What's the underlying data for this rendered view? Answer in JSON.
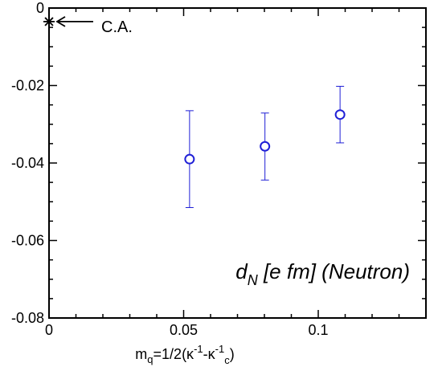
{
  "chart_data": {
    "type": "scatter",
    "title": "",
    "inner_label": {
      "main": "d",
      "sub": "N",
      "rest": " [e fm] (Neutron)"
    },
    "xlabel": {
      "prefix": "m",
      "sub_q": "q",
      "eq": "=1/2(κ",
      "sup1": "-1",
      "mid": "-κ",
      "sup2": "-1",
      "sub_c": "c",
      "close": ")"
    },
    "ylabel": "",
    "xlim": [
      0,
      0.14
    ],
    "ylim": [
      -0.08,
      0
    ],
    "x_ticks": [
      {
        "value": 0,
        "label": "0"
      },
      {
        "value": 0.05,
        "label": "0.05"
      },
      {
        "value": 0.1,
        "label": "0.1"
      }
    ],
    "y_ticks": [
      {
        "value": 0,
        "label": "0"
      },
      {
        "value": -0.02,
        "label": "-0.02"
      },
      {
        "value": -0.04,
        "label": "-0.04"
      },
      {
        "value": -0.06,
        "label": "-0.06"
      },
      {
        "value": -0.08,
        "label": "-0.08"
      }
    ],
    "x_minor_step": 0.01,
    "y_minor_step": 0.005,
    "series": [
      {
        "color": "#1f1fd6",
        "marker": "open-circle",
        "points": [
          {
            "x": 0.0522,
            "y": -0.039,
            "err_low": -0.0515,
            "err_high": -0.0265
          },
          {
            "x": 0.0802,
            "y": -0.0357,
            "err_low": -0.0444,
            "err_high": -0.0271
          },
          {
            "x": 0.1081,
            "y": -0.0275,
            "err_low": -0.0348,
            "err_high": -0.0202
          }
        ]
      }
    ],
    "annotation": {
      "text": "C.A.",
      "x": 0,
      "y": -0.0035,
      "marker": "asterisk"
    },
    "grid": false,
    "legend": "none"
  }
}
